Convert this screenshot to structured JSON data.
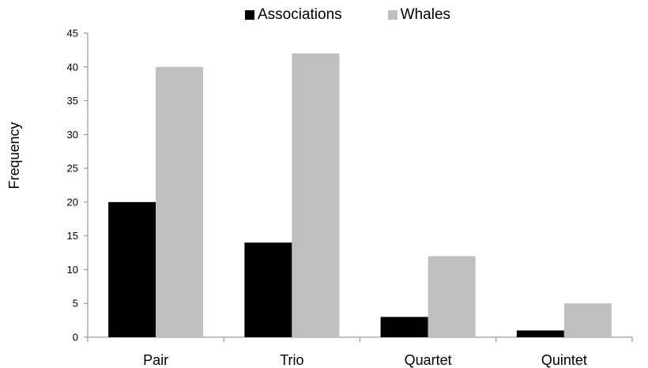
{
  "chart_data": {
    "type": "bar",
    "title": "",
    "xlabel": "",
    "ylabel": "Frequency",
    "categories": [
      "Pair",
      "Trio",
      "Quartet",
      "Quintet"
    ],
    "series": [
      {
        "name": "Associations",
        "values": [
          20,
          14,
          3,
          1
        ],
        "color": "#000000"
      },
      {
        "name": "Whales",
        "values": [
          40,
          42,
          12,
          5
        ],
        "color": "#bfbfbf"
      }
    ],
    "ylim": [
      0,
      45
    ],
    "yticks": [
      "0",
      "5",
      "10",
      "15",
      "20",
      "25",
      "30",
      "35",
      "40",
      "45"
    ],
    "grid": false,
    "legend_position": "top"
  }
}
